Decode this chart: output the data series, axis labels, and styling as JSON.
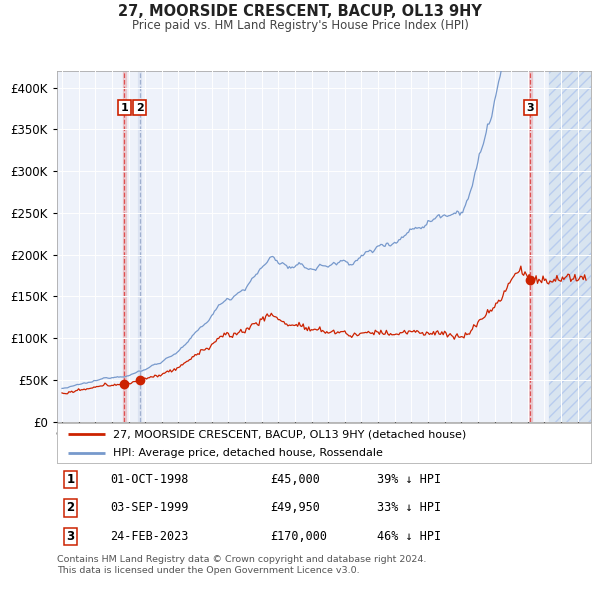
{
  "title": "27, MOORSIDE CRESCENT, BACUP, OL13 9HY",
  "subtitle": "Price paid vs. HM Land Registry's House Price Index (HPI)",
  "background_color": "#ffffff",
  "plot_bg_color": "#eef2fa",
  "grid_color": "#ffffff",
  "hpi_color": "#7799cc",
  "price_color": "#cc2200",
  "purchase_marker_color": "#cc2200",
  "ylim": [
    0,
    420000
  ],
  "yticks": [
    0,
    50000,
    100000,
    150000,
    200000,
    250000,
    300000,
    350000,
    400000
  ],
  "ytick_labels": [
    "£0",
    "£50K",
    "£100K",
    "£150K",
    "£200K",
    "£250K",
    "£300K",
    "£350K",
    "£400K"
  ],
  "xlim_start": 1994.7,
  "xlim_end": 2026.8,
  "future_start": 2024.3,
  "hatch_color": "#aabbdd",
  "hatch_bg": "#d8e4f0",
  "vline_red_color": "#dd4444",
  "vline_blue_color": "#aabbdd",
  "purchases": [
    {
      "label": "1",
      "date_year": 1998.75,
      "price": 45000,
      "vline_color": "#dd4444"
    },
    {
      "label": "2",
      "date_year": 1999.67,
      "price": 49950,
      "vline_color": "#aabbdd"
    },
    {
      "label": "3",
      "date_year": 2023.15,
      "price": 170000,
      "vline_color": "#dd4444"
    }
  ],
  "table_rows": [
    {
      "num": "1",
      "date": "01-OCT-1998",
      "price": "£45,000",
      "hpi": "39% ↓ HPI"
    },
    {
      "num": "2",
      "date": "03-SEP-1999",
      "price": "£49,950",
      "hpi": "33% ↓ HPI"
    },
    {
      "num": "3",
      "date": "24-FEB-2023",
      "price": "£170,000",
      "hpi": "46% ↓ HPI"
    }
  ],
  "legend_line1": "27, MOORSIDE CRESCENT, BACUP, OL13 9HY (detached house)",
  "legend_line2": "HPI: Average price, detached house, Rossendale",
  "footer": "Contains HM Land Registry data © Crown copyright and database right 2024.\nThis data is licensed under the Open Government Licence v3.0."
}
